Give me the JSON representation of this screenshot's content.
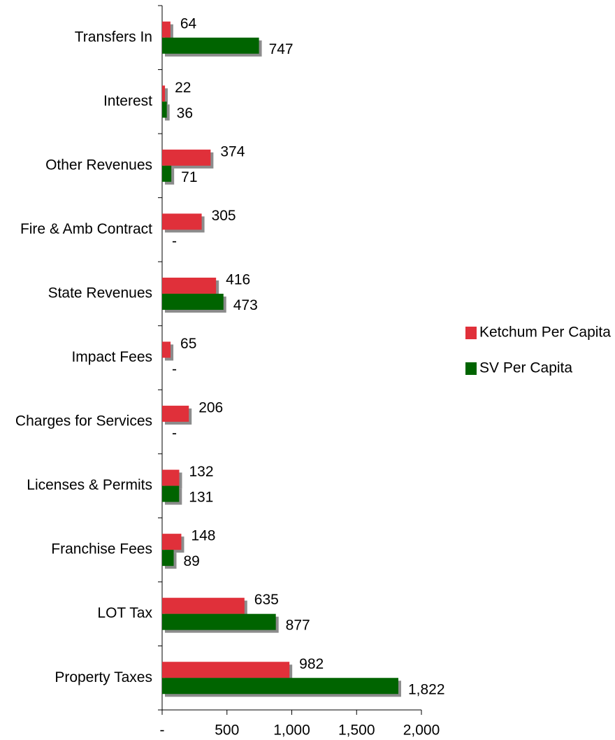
{
  "chart_data": {
    "type": "bar",
    "orientation": "horizontal",
    "categories": [
      "Transfers In",
      "Interest",
      "Other Revenues",
      "Fire & Amb Contract",
      "State Revenues",
      "Impact Fees",
      "Charges for Services",
      "Licenses & Permits",
      "Franchise Fees",
      "LOT Tax",
      "Property Taxes"
    ],
    "series": [
      {
        "name": "Ketchum Per Capita",
        "color": "#e0303a",
        "values": [
          64,
          22,
          374,
          305,
          416,
          65,
          206,
          132,
          148,
          635,
          982
        ]
      },
      {
        "name": "SV Per Capita",
        "color": "#006400",
        "values": [
          747,
          36,
          71,
          0,
          473,
          0,
          0,
          131,
          89,
          877,
          1822
        ],
        "value_labels": [
          "747",
          "36",
          "71",
          "-",
          "473",
          "-",
          "-",
          "131",
          "89",
          "877",
          "1,822"
        ]
      }
    ],
    "xlim": [
      0,
      2000
    ],
    "xticks": [
      {
        "value": 0,
        "label": "-"
      },
      500,
      {
        "value": 1000,
        "label": "1,000"
      },
      {
        "value": 1500,
        "label": "1,500"
      },
      {
        "value": 2000,
        "label": "2,000"
      }
    ],
    "legend": "right"
  }
}
